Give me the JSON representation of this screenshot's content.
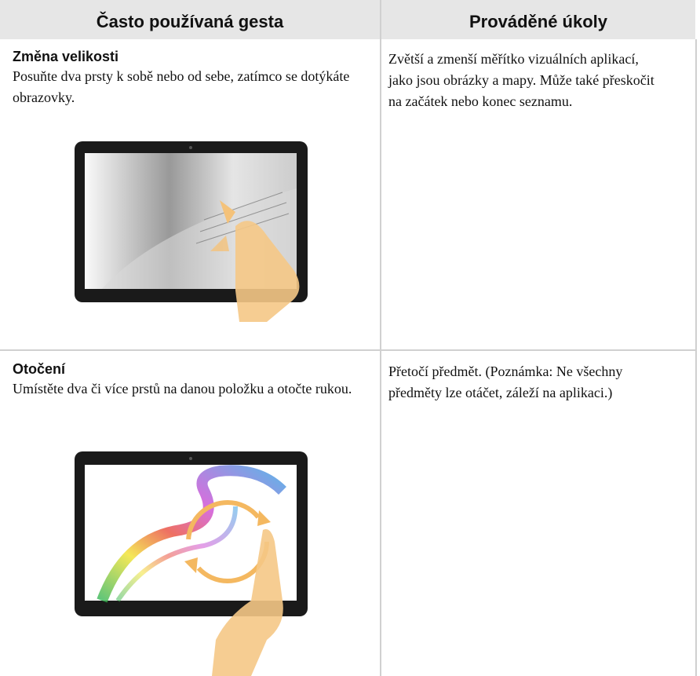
{
  "header": {
    "columns": [
      "Často používaná gesta",
      "Prováděné úkoly"
    ]
  },
  "table": {
    "rows": [
      {
        "title": "Změna velikosti",
        "description": "Posuňte dva prsty k sobě nebo od sebe, zatímco se dotýkáte obrazovky.",
        "task": "Zvětší a zmenší měřítko vizuálních aplikací, jako jsou obrázky a mapy. Může také přeskočit na začátek nebo konec seznamu."
      },
      {
        "title": "Otočení",
        "description": "Umístěte dva či více prstů na danou položku a otočte rukou.",
        "task": "Přetočí předmět. (Poznámka: Ne všechny předměty lze otáčet, záleží na aplikaci.)"
      }
    ]
  }
}
